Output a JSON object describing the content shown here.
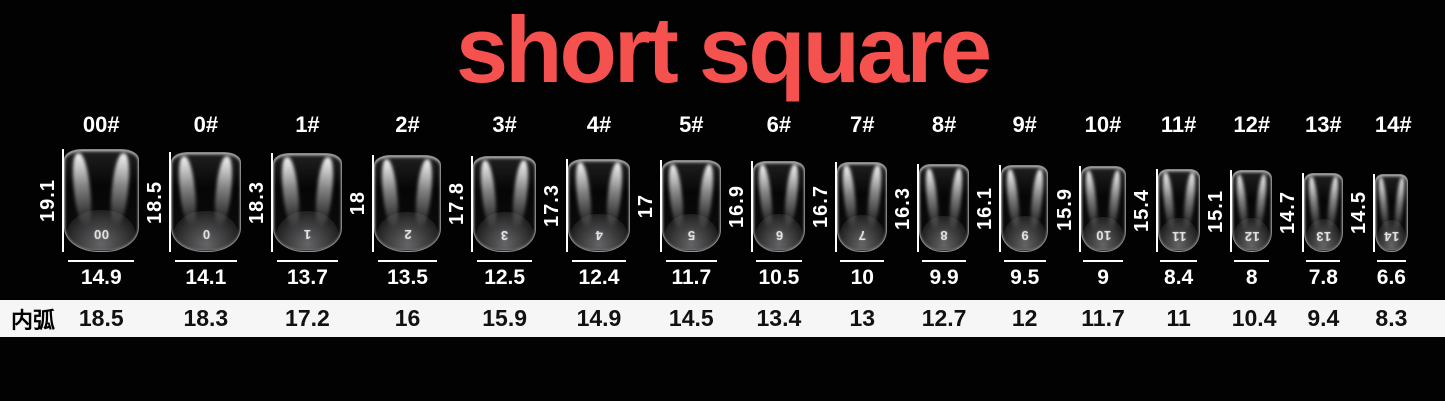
{
  "title": "short square",
  "inner_arc_label": "内弧",
  "colors": {
    "title": "#f4514f",
    "background": "#020202",
    "strip_background": "#f6f6f6",
    "measure_line": "#ffffff"
  },
  "sizes": [
    {
      "label": "00#",
      "digit": "00",
      "length": 19.1,
      "width": 14.9,
      "inner_arc": 18.5
    },
    {
      "label": "0#",
      "digit": "0",
      "length": 18.5,
      "width": 14.1,
      "inner_arc": 18.3
    },
    {
      "label": "1#",
      "digit": "1",
      "length": 18.3,
      "width": 13.7,
      "inner_arc": 17.2
    },
    {
      "label": "2#",
      "digit": "2",
      "length": 18,
      "width": 13.5,
      "inner_arc": 16
    },
    {
      "label": "3#",
      "digit": "3",
      "length": 17.8,
      "width": 12.5,
      "inner_arc": 15.9
    },
    {
      "label": "4#",
      "digit": "4",
      "length": 17.3,
      "width": 12.4,
      "inner_arc": 14.9
    },
    {
      "label": "5#",
      "digit": "5",
      "length": 17,
      "width": 11.7,
      "inner_arc": 14.5
    },
    {
      "label": "6#",
      "digit": "6",
      "length": 16.9,
      "width": 10.5,
      "inner_arc": 13.4
    },
    {
      "label": "7#",
      "digit": "7",
      "length": 16.7,
      "width": 10,
      "inner_arc": 13
    },
    {
      "label": "8#",
      "digit": "8",
      "length": 16.3,
      "width": 9.9,
      "inner_arc": 12.7
    },
    {
      "label": "9#",
      "digit": "9",
      "length": 16.1,
      "width": 9.5,
      "inner_arc": 12
    },
    {
      "label": "10#",
      "digit": "10",
      "length": 15.9,
      "width": 9,
      "inner_arc": 11.7
    },
    {
      "label": "11#",
      "digit": "11",
      "length": 15.4,
      "width": 8.4,
      "inner_arc": 11
    },
    {
      "label": "12#",
      "digit": "12",
      "length": 15.1,
      "width": 8,
      "inner_arc": 10.4
    },
    {
      "label": "13#",
      "digit": "13",
      "length": 14.7,
      "width": 7.8,
      "inner_arc": 9.4
    },
    {
      "label": "14#",
      "digit": "14",
      "length": 14.5,
      "width": 6.6,
      "inner_arc": 8.3
    }
  ],
  "chart_data": {
    "type": "table",
    "title": "short square",
    "columns": [
      "size",
      "length_mm",
      "width_mm",
      "inner_arc_mm"
    ],
    "rows": [
      [
        "00#",
        19.1,
        14.9,
        18.5
      ],
      [
        "0#",
        18.5,
        14.1,
        18.3
      ],
      [
        "1#",
        18.3,
        13.7,
        17.2
      ],
      [
        "2#",
        18,
        13.5,
        16
      ],
      [
        "3#",
        17.8,
        12.5,
        15.9
      ],
      [
        "4#",
        17.3,
        12.4,
        14.9
      ],
      [
        "5#",
        17,
        11.7,
        14.5
      ],
      [
        "6#",
        16.9,
        10.5,
        13.4
      ],
      [
        "7#",
        16.7,
        10,
        13
      ],
      [
        "8#",
        16.3,
        9.9,
        12.7
      ],
      [
        "9#",
        16.1,
        9.5,
        12
      ],
      [
        "10#",
        15.9,
        9,
        11.7
      ],
      [
        "11#",
        15.4,
        8.4,
        11
      ],
      [
        "12#",
        15.1,
        8,
        10.4
      ],
      [
        "13#",
        14.7,
        7.8,
        9.4
      ],
      [
        "14#",
        14.5,
        6.6,
        8.3
      ]
    ]
  }
}
